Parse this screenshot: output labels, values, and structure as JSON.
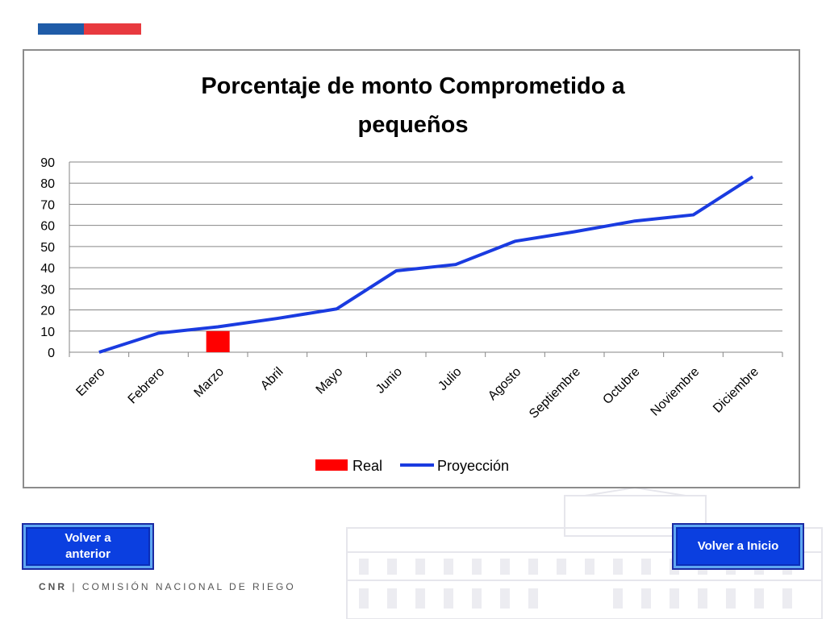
{
  "chart_data": {
    "type": "line",
    "title": "Porcentaje de monto Comprometido a pequeños",
    "categories": [
      "Enero",
      "Febrero",
      "Marzo",
      "Abril",
      "Mayo",
      "Junio",
      "Julio",
      "Agosto",
      "Septiembre",
      "Octubre",
      "Noviembre",
      "Diciembre"
    ],
    "ylim": [
      0,
      90
    ],
    "yticks": [
      0,
      10,
      20,
      30,
      40,
      50,
      60,
      70,
      80,
      90
    ],
    "grid": true,
    "legend_position": "bottom",
    "series": [
      {
        "name": "Real",
        "kind": "bar",
        "color": "#ff0000",
        "values": [
          null,
          null,
          10,
          null,
          null,
          null,
          null,
          null,
          null,
          null,
          null,
          null
        ]
      },
      {
        "name": "Proyección",
        "kind": "line",
        "color": "#1a3be0",
        "values": [
          0,
          9,
          12,
          16,
          20.5,
          38.5,
          41.5,
          52.5,
          57,
          62,
          65,
          83
        ]
      }
    ]
  },
  "buttons": {
    "prev_label": "Volver a anterior",
    "home_label": "Volver a Inicio"
  },
  "footer": {
    "cnr": "CNR",
    "separator": "|",
    "org": "COMISIÓN NACIONAL DE RIEGO"
  },
  "colors": {
    "flag_blue": "#1f5ca8",
    "flag_red": "#e83a3f",
    "button_blue": "#0b3fe0"
  }
}
